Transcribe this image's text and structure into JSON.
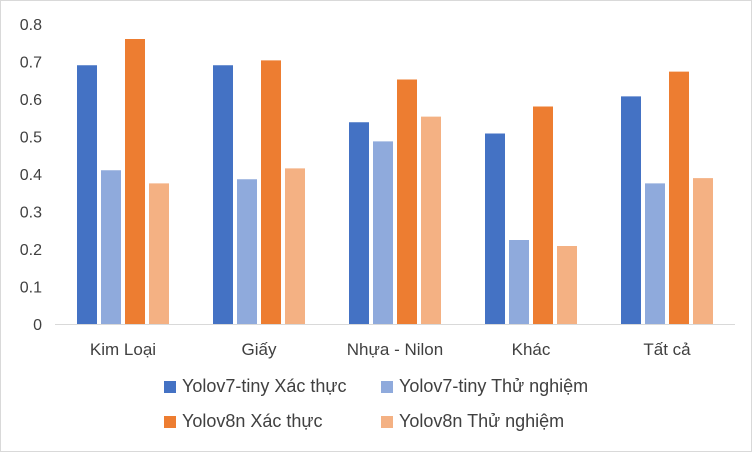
{
  "chart_data": {
    "type": "bar",
    "categories": [
      "Kim Loại",
      "Giấy",
      "Nhựa - Nilon",
      "Khác",
      "Tất cả"
    ],
    "series": [
      {
        "name": "Yolov7-tiny Xác thực",
        "color": "#4472C4",
        "values": [
          0.69,
          0.69,
          0.538,
          0.508,
          0.607
        ]
      },
      {
        "name": "Yolov7-tiny Thử nghiệm",
        "color": "#8FAADC",
        "values": [
          0.41,
          0.386,
          0.487,
          0.224,
          0.375
        ]
      },
      {
        "name": "Yolov8n Xác thực",
        "color": "#ED7D31",
        "values": [
          0.76,
          0.703,
          0.652,
          0.58,
          0.673
        ]
      },
      {
        "name": "Yolov8n Thử nghiệm",
        "color": "#F4B183",
        "values": [
          0.375,
          0.415,
          0.553,
          0.208,
          0.389
        ]
      }
    ],
    "yticks": [
      "0",
      "0.1",
      "0.2",
      "0.3",
      "0.4",
      "0.5",
      "0.6",
      "0.7",
      "0.8"
    ],
    "ylim": [
      0,
      0.8
    ],
    "title": "",
    "xlabel": "",
    "ylabel": "",
    "grid": false,
    "legend_position": "bottom"
  }
}
